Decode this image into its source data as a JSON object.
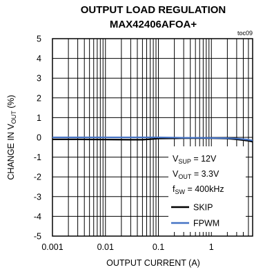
{
  "chart_data": {
    "type": "line",
    "title": "OUTPUT LOAD REGULATION",
    "subtitle": "MAX42406AFOA+",
    "tag": "toc09",
    "xlabel": "OUTPUT CURRENT (A)",
    "ylabel": {
      "main": "CHANGE IN V",
      "sub": "OUT",
      "unit": " (%)"
    },
    "xscale": "log",
    "xlim": [
      0.001,
      6
    ],
    "ylim": [
      -5,
      5
    ],
    "x_ticks": [
      "0.001",
      "0.01",
      "0.1",
      "1"
    ],
    "y_ticks": [
      "5",
      "4",
      "3",
      "2",
      "1",
      "0",
      "-1",
      "-2",
      "-3",
      "-4",
      "-5"
    ],
    "grid": true,
    "legend_placement": "bottom-right",
    "conditions": [
      {
        "main": "V",
        "sub": "SUP",
        "rest": " = 12V"
      },
      {
        "main": "V",
        "sub": "OUT",
        "rest": " = 3.3V"
      },
      {
        "main": "f",
        "sub": "SW",
        "rest": " = 400kHz"
      }
    ],
    "series": [
      {
        "name": "SKIP",
        "color": "#000000",
        "x": [
          0.001,
          0.003,
          0.01,
          0.03,
          0.05,
          0.07,
          0.1,
          0.2,
          0.3,
          0.5,
          1,
          2,
          3,
          5,
          6
        ],
        "y": [
          -0.1,
          -0.1,
          -0.11,
          -0.12,
          -0.12,
          -0.09,
          -0.06,
          -0.05,
          -0.04,
          -0.04,
          -0.04,
          -0.06,
          -0.1,
          -0.17,
          -0.22
        ]
      },
      {
        "name": "FPWM",
        "color": "#4472C4",
        "x": [
          0.001,
          0.003,
          0.01,
          0.03,
          0.1,
          0.2,
          0.3,
          0.5,
          1,
          2,
          3,
          5,
          6
        ],
        "y": [
          0.0,
          0.0,
          0.0,
          0.0,
          0.0,
          -0.01,
          -0.02,
          -0.02,
          -0.03,
          -0.04,
          -0.06,
          -0.12,
          -0.16
        ]
      }
    ]
  }
}
